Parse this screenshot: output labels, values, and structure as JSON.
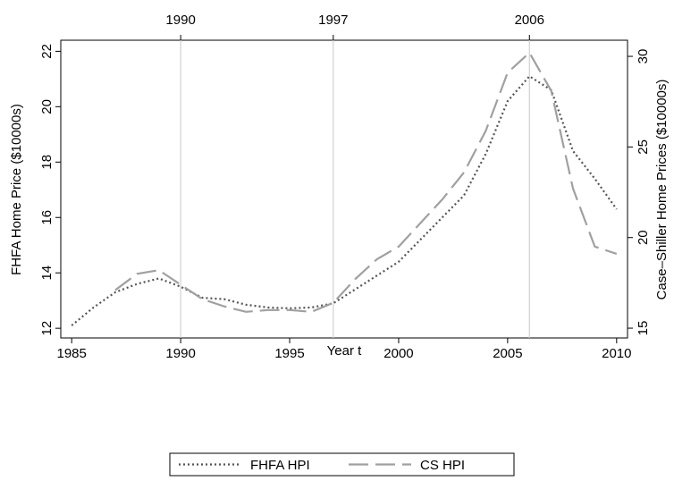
{
  "chart_data": {
    "type": "line",
    "x": [
      1985,
      1986,
      1987,
      1988,
      1989,
      1990,
      1991,
      1992,
      1993,
      1994,
      1995,
      1996,
      1997,
      1998,
      1999,
      2000,
      2001,
      2002,
      2003,
      2004,
      2005,
      2006,
      2007,
      2008,
      2009,
      2010
    ],
    "series": [
      {
        "name": "FHFA HPI",
        "color": "#555555",
        "dash": "dotted",
        "axis": "y",
        "values": [
          12.1,
          12.75,
          13.3,
          13.6,
          13.8,
          13.5,
          13.1,
          13.05,
          12.85,
          12.75,
          12.72,
          12.75,
          12.9,
          13.4,
          13.9,
          14.4,
          15.2,
          16.0,
          16.8,
          18.3,
          20.2,
          21.1,
          20.6,
          18.4,
          17.4,
          16.3
        ]
      },
      {
        "name": "CS HPI",
        "color": "#a0a0a0",
        "dash": "dashed",
        "axis": "y2",
        "values": [
          null,
          null,
          17.1,
          18.0,
          18.2,
          17.4,
          16.6,
          16.2,
          15.9,
          16.0,
          16.0,
          15.9,
          16.4,
          17.7,
          18.8,
          19.5,
          20.8,
          22.1,
          23.6,
          25.9,
          29.1,
          30.2,
          28.1,
          22.7,
          19.5,
          19.1
        ]
      }
    ],
    "xlabel": "Year t",
    "ylabel": "FHFA Home Price ($10000s)",
    "y2label": "Case–Shiller Home Prices ($10000s)",
    "xlim": [
      1984.5,
      2010.5
    ],
    "xticks": [
      1985,
      1990,
      1995,
      2000,
      2005,
      2010
    ],
    "x2ticks": [
      1990,
      1997,
      2006
    ],
    "ylim": [
      11.65,
      22.4
    ],
    "yticks": [
      12,
      14,
      16,
      18,
      20,
      22
    ],
    "y2lim": [
      14.46,
      30.89
    ],
    "y2ticks": [
      15,
      20,
      25,
      30
    ],
    "legend": "bottom"
  }
}
